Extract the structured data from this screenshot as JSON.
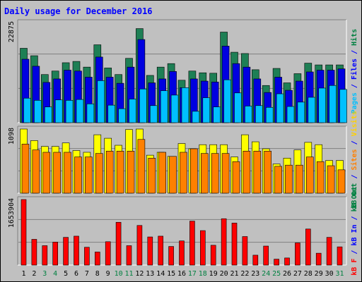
{
  "chart_data": [
    {
      "type": "bar",
      "title": "Daily usage for December 2016",
      "categories": [
        "1",
        "2",
        "3",
        "4",
        "5",
        "6",
        "7",
        "8",
        "9",
        "10",
        "11",
        "12",
        "13",
        "14",
        "15",
        "16",
        "17",
        "18",
        "19",
        "20",
        "21",
        "22",
        "23",
        "24",
        "25",
        "26",
        "27",
        "28",
        "29",
        "30",
        "31"
      ],
      "weekend_days": [
        "3",
        "4",
        "10",
        "11",
        "17",
        "18",
        "24",
        "25",
        "31"
      ],
      "ymax_label": "22875",
      "ylim": [
        0,
        22875
      ],
      "axis_label_parts": [
        "Pages",
        " / ",
        "Files",
        " / ",
        "Hits"
      ],
      "series": [
        {
          "name": "Hits",
          "color": "#1e7f55",
          "values": [
            17000,
            15300,
            11000,
            11800,
            13700,
            14000,
            12700,
            17800,
            12500,
            11000,
            14700,
            21500,
            10800,
            12700,
            13500,
            9700,
            11800,
            11400,
            11300,
            20700,
            16100,
            15800,
            12100,
            8500,
            12400,
            9100,
            11200,
            13600,
            13200,
            13200,
            13200
          ]
        },
        {
          "name": "Files",
          "color": "#0000e0",
          "values": [
            14500,
            12900,
            9200,
            10000,
            12000,
            11800,
            10400,
            15000,
            10400,
            9000,
            12700,
            19000,
            9100,
            10000,
            11700,
            8000,
            10000,
            9500,
            9300,
            17500,
            13500,
            12700,
            10000,
            6900,
            10400,
            7400,
            9500,
            11600,
            12000,
            12000,
            12300
          ]
        },
        {
          "name": "Pages",
          "color": "#00c0ff",
          "values": [
            5600,
            5100,
            3600,
            5200,
            5100,
            5300,
            4300,
            9600,
            4000,
            3200,
            5400,
            7700,
            3900,
            7300,
            6300,
            8000,
            2600,
            5700,
            3600,
            9800,
            6800,
            3800,
            3900,
            3500,
            6600,
            3700,
            4700,
            5800,
            7900,
            8500,
            7600
          ]
        }
      ]
    },
    {
      "type": "bar",
      "ymax_label": "1098",
      "ylim": [
        0,
        1098
      ],
      "axis_label_parts": [
        "kB Out",
        " / ",
        "Sites",
        " / ",
        "Visits"
      ],
      "series": [
        {
          "name": "Visits",
          "color": "#ffff00",
          "values": [
            1098,
            900,
            800,
            800,
            860,
            730,
            700,
            1000,
            940,
            820,
            1090,
            1098,
            650,
            700,
            630,
            850,
            760,
            830,
            830,
            830,
            620,
            1000,
            880,
            760,
            500,
            600,
            740,
            870,
            830,
            560,
            560
          ]
        },
        {
          "name": "Sites",
          "color": "#ff8000",
          "values": [
            840,
            740,
            700,
            700,
            700,
            620,
            620,
            680,
            720,
            720,
            720,
            920,
            600,
            700,
            630,
            700,
            760,
            680,
            680,
            680,
            540,
            720,
            720,
            720,
            460,
            480,
            480,
            620,
            540,
            470,
            400
          ]
        }
      ]
    },
    {
      "type": "bar",
      "ymax_label": "1653904",
      "ylim": [
        0,
        1653904
      ],
      "axis_label_parts": [
        "kB F",
        " / ",
        "kB In",
        " / ",
        "kB Out"
      ],
      "series": [
        {
          "name": "kB F",
          "color": "#ff0000",
          "values": [
            1653904,
            650000,
            490000,
            580000,
            700000,
            730000,
            450000,
            330000,
            590000,
            1080000,
            490000,
            1000000,
            710000,
            730000,
            470000,
            610000,
            1110000,
            870000,
            500000,
            1170000,
            1060000,
            720000,
            250000,
            480000,
            150000,
            180000,
            560000,
            910000,
            300000,
            700000,
            460000
          ]
        }
      ]
    }
  ]
}
